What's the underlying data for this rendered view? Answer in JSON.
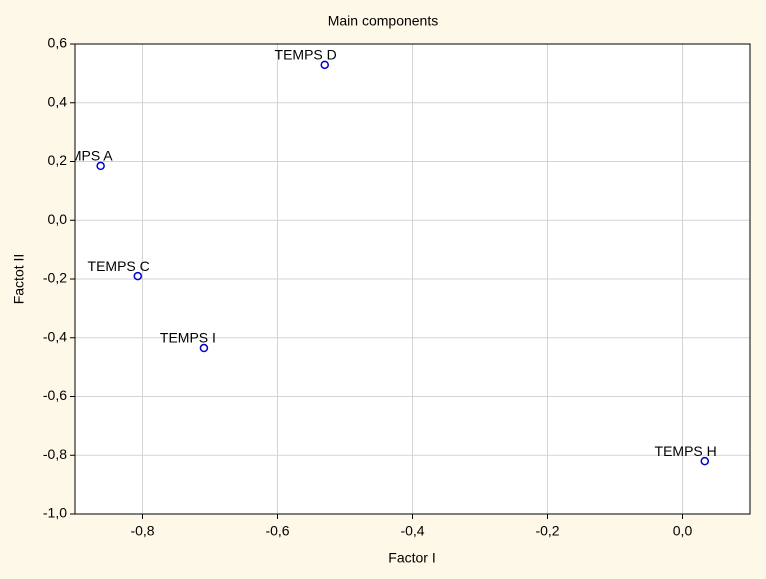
{
  "chart_data": {
    "type": "scatter",
    "title": "Main components",
    "x_label": "Factor I",
    "y_label": "Factot II",
    "x": [
      -0.862,
      -0.53,
      -0.807,
      -0.709,
      0.033
    ],
    "point_labels": [
      "TEMPS A",
      "TEMPS D",
      "TEMPS C",
      "TEMPS I",
      "TEMPS H"
    ],
    "series": [
      {
        "color": "#0000cc",
        "values": [
          0.185,
          0.529,
          -0.19,
          -0.435,
          -0.82
        ]
      }
    ],
    "xlim": [
      -0.9,
      0.1
    ],
    "xticks": [
      {
        "value": -0.8,
        "label": "-0,8"
      },
      {
        "value": -0.6,
        "label": "-0,6"
      },
      {
        "value": -0.4,
        "label": "-0,4"
      },
      {
        "value": -0.2,
        "label": "-0,2"
      },
      {
        "value": 0,
        "label": "0,0"
      }
    ],
    "ylim": [
      -1.0,
      0.6
    ],
    "yticks": [
      {
        "value": 0.6,
        "label": "0,6"
      },
      {
        "value": 0.4,
        "label": "0,4"
      },
      {
        "value": 0.2,
        "label": "0,2"
      },
      {
        "value": 0,
        "label": "0,0"
      },
      {
        "value": -0.2,
        "label": "-0,2"
      },
      {
        "value": -0.4,
        "label": "-0,4"
      },
      {
        "value": -0.6,
        "label": "-0,6"
      },
      {
        "value": -0.8,
        "label": "-0,8"
      },
      {
        "value": -1.0,
        "label": "-1,0"
      }
    ],
    "grid": true
  }
}
